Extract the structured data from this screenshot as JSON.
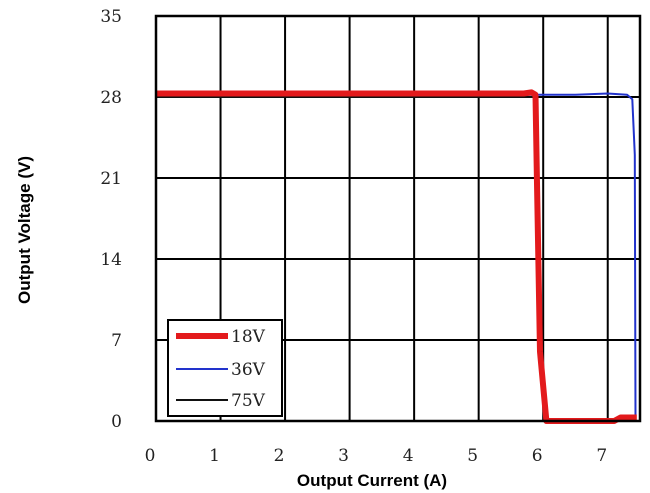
{
  "chart_data": {
    "type": "line",
    "title": "",
    "xlabel": "Output Current (A)",
    "ylabel": "Output Voltage (V)",
    "xlim": [
      0,
      7.5
    ],
    "ylim": [
      0,
      35
    ],
    "x_ticks": [
      "0",
      "1",
      "2",
      "3",
      "4",
      "5",
      "6",
      "7"
    ],
    "y_ticks": [
      "0",
      "7",
      "14",
      "21",
      "28",
      "35"
    ],
    "grid": true,
    "legend_position": "bottom-left",
    "series": [
      {
        "name": "18V",
        "color": "#e31a1c",
        "points": [
          [
            0,
            28.3
          ],
          [
            5.0,
            28.3
          ],
          [
            5.7,
            28.3
          ],
          [
            5.82,
            28.4
          ],
          [
            5.88,
            28.2
          ],
          [
            5.9,
            22
          ],
          [
            5.95,
            6
          ],
          [
            6.05,
            0
          ],
          [
            7.1,
            0
          ],
          [
            7.2,
            0.3
          ],
          [
            7.45,
            0.3
          ]
        ]
      },
      {
        "name": "36V",
        "color": "#2233cc",
        "points": [
          [
            0,
            28.2
          ],
          [
            5.0,
            28.2
          ],
          [
            6.5,
            28.2
          ],
          [
            7.0,
            28.3
          ],
          [
            7.3,
            28.2
          ],
          [
            7.38,
            27.8
          ],
          [
            7.42,
            23
          ],
          [
            7.43,
            0
          ]
        ]
      },
      {
        "name": "75V",
        "color": "#111111",
        "points": [
          [
            0,
            28.0
          ],
          [
            5.5,
            28.0
          ],
          [
            5.9,
            28.0
          ],
          [
            5.92,
            20
          ],
          [
            5.97,
            5
          ],
          [
            6.05,
            0
          ],
          [
            7.45,
            0
          ]
        ]
      }
    ]
  }
}
